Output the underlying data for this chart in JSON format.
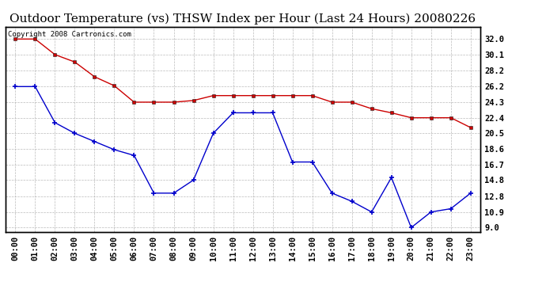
{
  "title": "Outdoor Temperature (vs) THSW Index per Hour (Last 24 Hours) 20080226",
  "copyright": "Copyright 2008 Cartronics.com",
  "hours": [
    "00:00",
    "01:00",
    "02:00",
    "03:00",
    "04:00",
    "05:00",
    "06:00",
    "07:00",
    "08:00",
    "09:00",
    "10:00",
    "11:00",
    "12:00",
    "13:00",
    "14:00",
    "15:00",
    "16:00",
    "17:00",
    "18:00",
    "19:00",
    "20:00",
    "21:00",
    "22:00",
    "23:00"
  ],
  "red_data": [
    32.0,
    32.0,
    30.1,
    29.2,
    27.4,
    26.3,
    24.3,
    24.3,
    24.3,
    24.5,
    25.1,
    25.1,
    25.1,
    25.1,
    25.1,
    25.1,
    24.3,
    24.3,
    23.5,
    23.0,
    22.4,
    22.4,
    22.4,
    21.2
  ],
  "blue_data": [
    26.2,
    26.2,
    21.8,
    20.5,
    19.5,
    18.5,
    17.8,
    13.2,
    13.2,
    14.8,
    20.5,
    23.0,
    23.0,
    23.0,
    17.0,
    17.0,
    13.2,
    12.2,
    10.9,
    15.1,
    9.0,
    10.9,
    11.3,
    13.2
  ],
  "ylim": [
    8.5,
    33.5
  ],
  "yticks_right": [
    9.0,
    10.9,
    12.8,
    14.8,
    16.7,
    18.6,
    20.5,
    22.4,
    24.3,
    26.2,
    28.2,
    30.1,
    32.0
  ],
  "red_color": "#cc0000",
  "blue_color": "#0000cc",
  "bg_color": "#ffffff",
  "grid_color": "#aaaaaa",
  "title_fontsize": 11,
  "copyright_fontsize": 6.5,
  "tick_fontsize": 7.5
}
